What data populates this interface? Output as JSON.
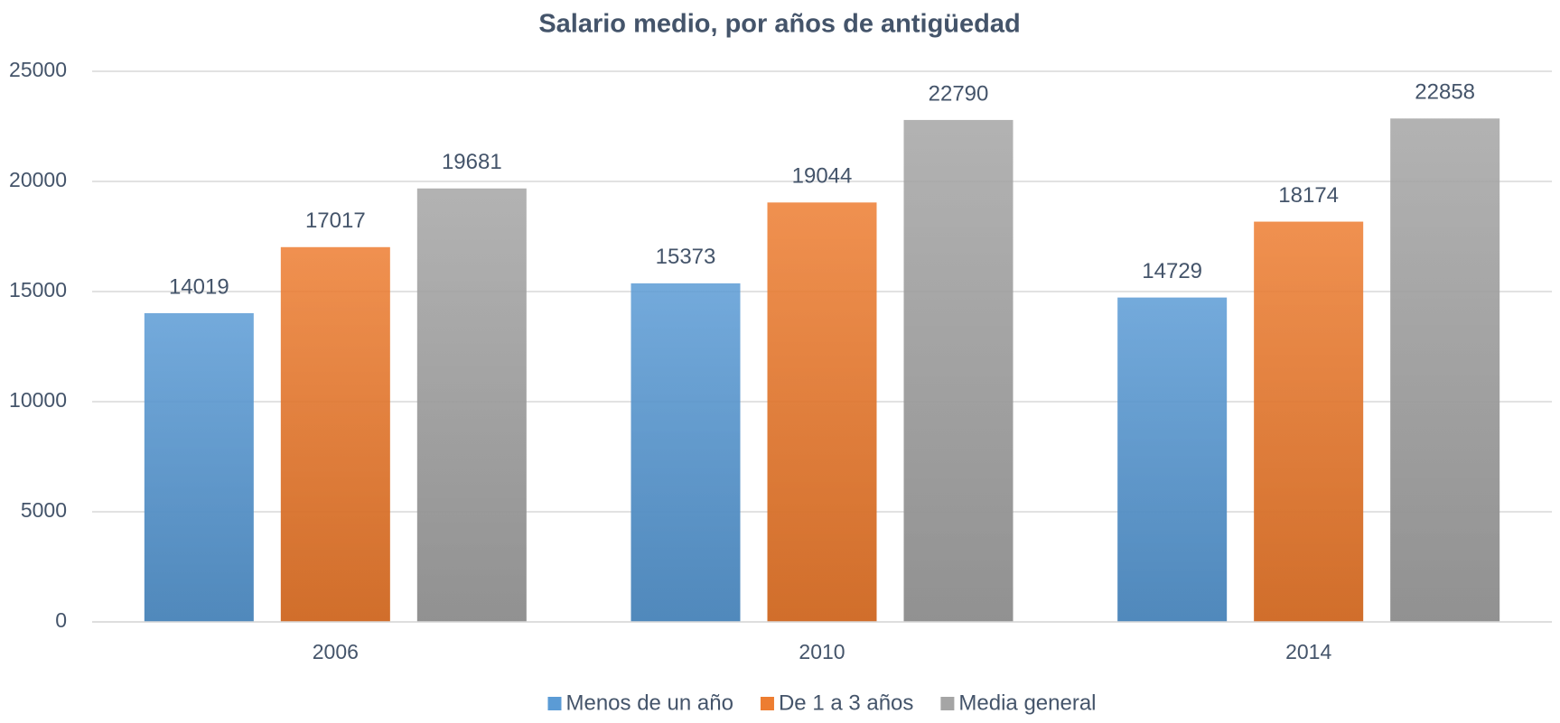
{
  "chart_data": {
    "type": "bar",
    "title": "Salario medio, por años de antigüedad",
    "categories": [
      "2006",
      "2010",
      "2014"
    ],
    "series": [
      {
        "name": "Menos de un año",
        "color": "#5b9bd5",
        "values": [
          14019,
          15373,
          14729
        ]
      },
      {
        "name": "De 1 a 3 años",
        "color": "#ed7d31",
        "values": [
          17017,
          19044,
          18174
        ]
      },
      {
        "name": "Media general",
        "color": "#a5a5a5",
        "values": [
          19681,
          22790,
          22858
        ]
      }
    ],
    "ylim": [
      0,
      25000
    ],
    "yticks": [
      0,
      5000,
      10000,
      15000,
      20000,
      25000
    ],
    "grid": true,
    "legend": "bottom"
  }
}
